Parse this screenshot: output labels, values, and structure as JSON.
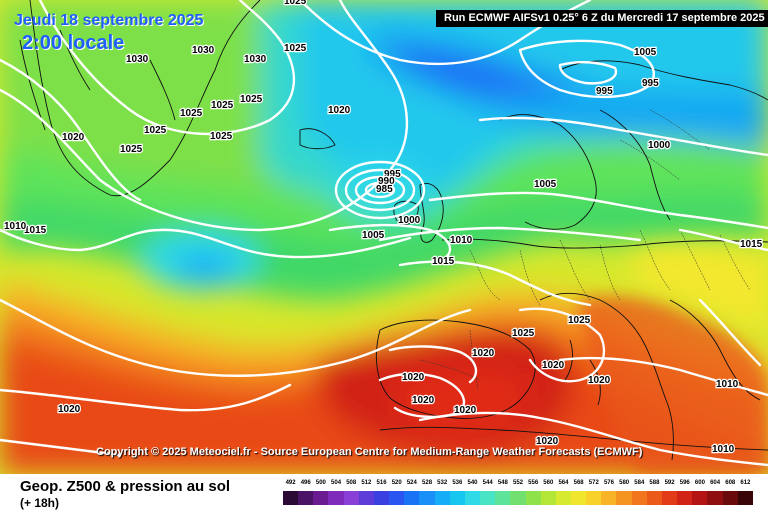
{
  "header": {
    "date_line": "Jeudi 18 septembre 2025",
    "time_line": "2:00 locale",
    "run_info": "Run ECMWF AIFSv1 0.25° 6 Z du Mercredi 17 septembre 2025"
  },
  "copyright": "Copyright © 2025 Meteociel.fr - Source European Centre for Medium-Range Weather Forecasts (ECMWF)",
  "footer": {
    "parameter": "Geop. Z500 & pression au sol",
    "lead_time": "(+ 18h)"
  },
  "legend": {
    "values": [
      "492",
      "496",
      "500",
      "504",
      "508",
      "512",
      "516",
      "520",
      "524",
      "528",
      "532",
      "536",
      "540",
      "544",
      "548",
      "552",
      "556",
      "560",
      "564",
      "568",
      "572",
      "576",
      "580",
      "584",
      "588",
      "592",
      "596",
      "600",
      "604",
      "608",
      "612"
    ],
    "colors": [
      "#2b0a36",
      "#4b1366",
      "#6a1b91",
      "#7d2bb8",
      "#8a3fd6",
      "#5c3bd8",
      "#3a3fe0",
      "#2a55f0",
      "#1a72f5",
      "#1890f7",
      "#14adf6",
      "#17c6ef",
      "#2fd9e6",
      "#46e3c4",
      "#5de39a",
      "#72e070",
      "#8fe24a",
      "#b3e637",
      "#d6ea30",
      "#f0e62e",
      "#f8d22b",
      "#f8b326",
      "#f59421",
      "#f1761d",
      "#ec5a1a",
      "#e13c17",
      "#d12416",
      "#b51414",
      "#8f0f10",
      "#690a0b",
      "#3a0506"
    ]
  },
  "map": {
    "pressure_labels": [
      "1030",
      "1025",
      "1030",
      "1030",
      "1025",
      "1025",
      "1025",
      "1025",
      "1025",
      "1020",
      "1025",
      "1025",
      "1020",
      "1015",
      "1010",
      "1005",
      "995",
      "995",
      "1000",
      "1005",
      "995",
      "990",
      "985",
      "1000",
      "1005",
      "1010",
      "1015",
      "1015",
      "1025",
      "1025",
      "1020",
      "1020",
      "1020",
      "1020",
      "1020",
      "1020",
      "1010",
      "1010",
      "1020",
      "1020"
    ]
  }
}
